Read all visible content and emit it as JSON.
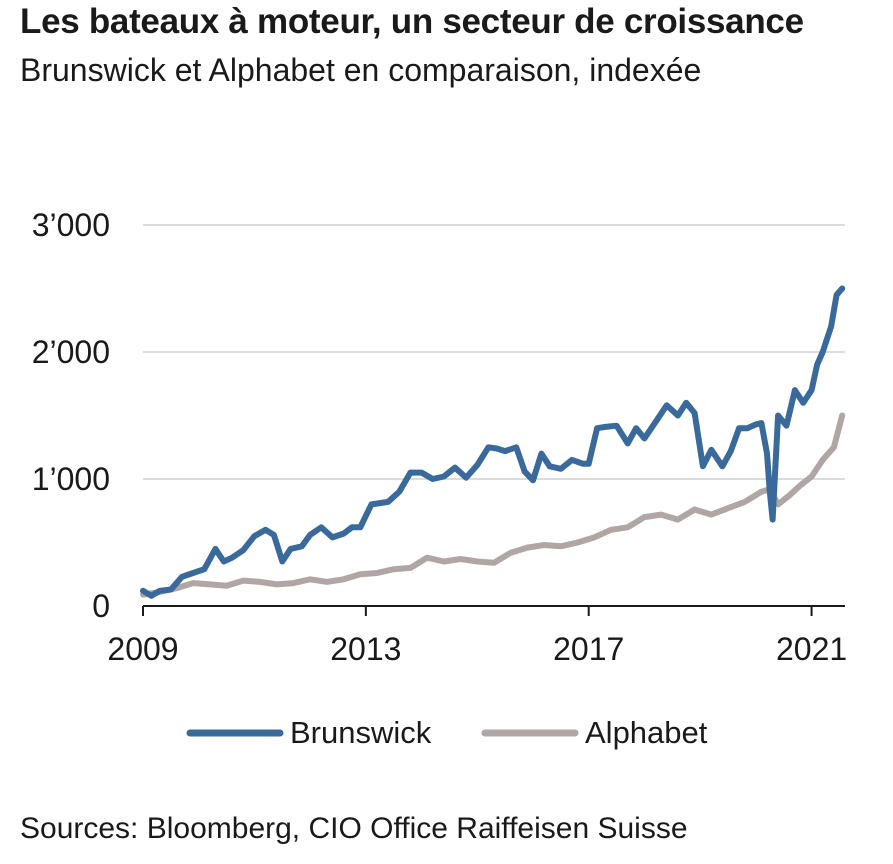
{
  "title": "Les bateaux à moteur, un secteur de croissance",
  "subtitle": "Brunswick et Alphabet en comparaison, indexée",
  "source": "Sources: Bloomberg, CIO Office Raiffeisen Suisse",
  "chart_data": {
    "type": "line",
    "title": "Les bateaux à moteur, un secteur de croissance",
    "subtitle": "Brunswick et Alphabet en comparaison, indexée",
    "xlabel": "",
    "ylabel": "",
    "xlim": [
      2009,
      2021.6
    ],
    "ylim": [
      0,
      3000
    ],
    "grid": true,
    "legend_position": "bottom",
    "x_ticks": [
      2009,
      2013,
      2017,
      2021
    ],
    "x_tick_labels": [
      "2009",
      "2013",
      "2017",
      "2021"
    ],
    "y_ticks": [
      0,
      1000,
      2000,
      3000
    ],
    "y_tick_labels": [
      "0",
      "1’000",
      "2’000",
      "3’000"
    ],
    "series": [
      {
        "name": "Brunswick",
        "color": "#3a6a9c",
        "x": [
          2009.0,
          2009.15,
          2009.3,
          2009.5,
          2009.7,
          2009.9,
          2010.1,
          2010.3,
          2010.45,
          2010.6,
          2010.8,
          2011.0,
          2011.2,
          2011.35,
          2011.5,
          2011.65,
          2011.85,
          2012.0,
          2012.2,
          2012.4,
          2012.6,
          2012.75,
          2012.9,
          2013.1,
          2013.25,
          2013.4,
          2013.6,
          2013.8,
          2014.0,
          2014.2,
          2014.4,
          2014.6,
          2014.8,
          2015.0,
          2015.2,
          2015.35,
          2015.5,
          2015.7,
          2015.85,
          2016.0,
          2016.15,
          2016.3,
          2016.5,
          2016.7,
          2016.9,
          2017.0,
          2017.15,
          2017.3,
          2017.5,
          2017.7,
          2017.85,
          2018.0,
          2018.2,
          2018.4,
          2018.6,
          2018.75,
          2018.9,
          2019.05,
          2019.2,
          2019.4,
          2019.55,
          2019.7,
          2019.85,
          2020.0,
          2020.1,
          2020.2,
          2020.25,
          2020.3,
          2020.4,
          2020.55,
          2020.7,
          2020.85,
          2021.0,
          2021.1,
          2021.2,
          2021.35,
          2021.45,
          2021.55
        ],
        "values": [
          120,
          80,
          120,
          130,
          230,
          260,
          290,
          450,
          350,
          380,
          440,
          550,
          600,
          560,
          350,
          450,
          470,
          560,
          620,
          540,
          570,
          620,
          620,
          800,
          810,
          820,
          900,
          1050,
          1050,
          1000,
          1020,
          1090,
          1010,
          1110,
          1250,
          1240,
          1220,
          1250,
          1060,
          990,
          1200,
          1100,
          1080,
          1150,
          1120,
          1120,
          1400,
          1410,
          1420,
          1280,
          1400,
          1320,
          1450,
          1580,
          1500,
          1600,
          1520,
          1100,
          1230,
          1100,
          1220,
          1400,
          1400,
          1430,
          1440,
          1200,
          900,
          680,
          1500,
          1420,
          1700,
          1600,
          1700,
          1900,
          2000,
          2200,
          2450,
          2500
        ]
      },
      {
        "name": "Alphabet",
        "color": "#b0a6a4",
        "x": [
          2009.0,
          2009.3,
          2009.6,
          2009.9,
          2010.2,
          2010.5,
          2010.8,
          2011.1,
          2011.4,
          2011.7,
          2012.0,
          2012.3,
          2012.6,
          2012.9,
          2013.2,
          2013.5,
          2013.8,
          2014.1,
          2014.4,
          2014.7,
          2015.0,
          2015.3,
          2015.6,
          2015.9,
          2016.2,
          2016.5,
          2016.8,
          2017.1,
          2017.4,
          2017.7,
          2018.0,
          2018.3,
          2018.6,
          2018.9,
          2019.2,
          2019.5,
          2019.8,
          2020.1,
          2020.25,
          2020.4,
          2020.6,
          2020.8,
          2021.0,
          2021.2,
          2021.4,
          2021.55
        ],
        "values": [
          90,
          110,
          140,
          180,
          170,
          160,
          200,
          190,
          170,
          180,
          210,
          190,
          210,
          250,
          260,
          290,
          300,
          380,
          350,
          370,
          350,
          340,
          420,
          460,
          480,
          470,
          500,
          540,
          600,
          620,
          700,
          720,
          680,
          760,
          720,
          770,
          820,
          900,
          920,
          800,
          870,
          950,
          1020,
          1150,
          1250,
          1500
        ]
      }
    ]
  }
}
